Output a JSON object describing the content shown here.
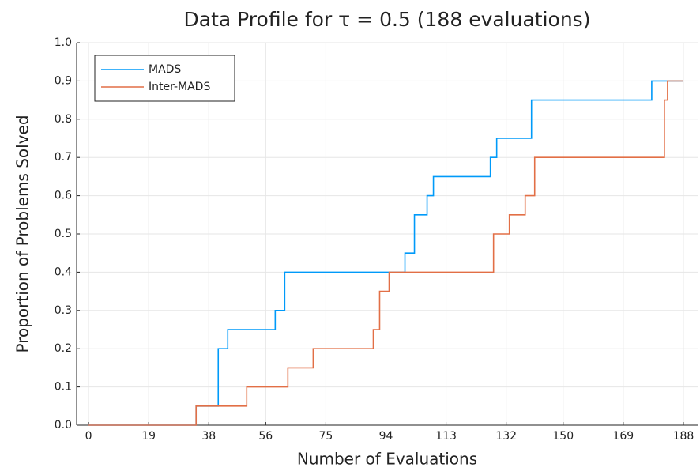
{
  "chart_data": {
    "type": "line",
    "step": "post",
    "title": "Data Profile for τ = 0.5 (188 evaluations)",
    "xlabel": "Number of Evaluations",
    "ylabel": "Proportion of Problems Solved",
    "xlim": [
      -3.76,
      192.76
    ],
    "ylim": [
      0,
      1
    ],
    "xticks": [
      0,
      19,
      38,
      56,
      75,
      94,
      113,
      132,
      150,
      169,
      188
    ],
    "yticks": [
      {
        "value": 0,
        "label": "0.0"
      },
      {
        "value": 0.1,
        "label": "0.1"
      },
      {
        "value": 0.2,
        "label": "0.2"
      },
      {
        "value": 0.3,
        "label": "0.3"
      },
      {
        "value": 0.4,
        "label": "0.4"
      },
      {
        "value": 0.5,
        "label": "0.5"
      },
      {
        "value": 0.6,
        "label": "0.6"
      },
      {
        "value": 0.7,
        "label": "0.7"
      },
      {
        "value": 0.8,
        "label": "0.8"
      },
      {
        "value": 0.9,
        "label": "0.9"
      },
      {
        "value": 1,
        "label": "1.0"
      }
    ],
    "grid": true,
    "legend": "top-left",
    "series": [
      {
        "name": "MADS",
        "color": "#009af9",
        "x": [
          0,
          34,
          41,
          44,
          59,
          62,
          100,
          103,
          107,
          109,
          127,
          129,
          140,
          178,
          188
        ],
        "values": [
          0,
          0.05,
          0.2,
          0.25,
          0.3,
          0.4,
          0.45,
          0.55,
          0.6,
          0.65,
          0.7,
          0.75,
          0.85,
          0.9,
          0.9
        ]
      },
      {
        "name": "Inter-MADS",
        "color": "#e26f46",
        "x": [
          0,
          34,
          50,
          63,
          71,
          90,
          92,
          95,
          128,
          133,
          138,
          141,
          182,
          183,
          188
        ],
        "values": [
          0,
          0.05,
          0.1,
          0.15,
          0.2,
          0.25,
          0.35,
          0.4,
          0.5,
          0.55,
          0.6,
          0.7,
          0.85,
          0.9,
          0.9
        ]
      }
    ]
  }
}
